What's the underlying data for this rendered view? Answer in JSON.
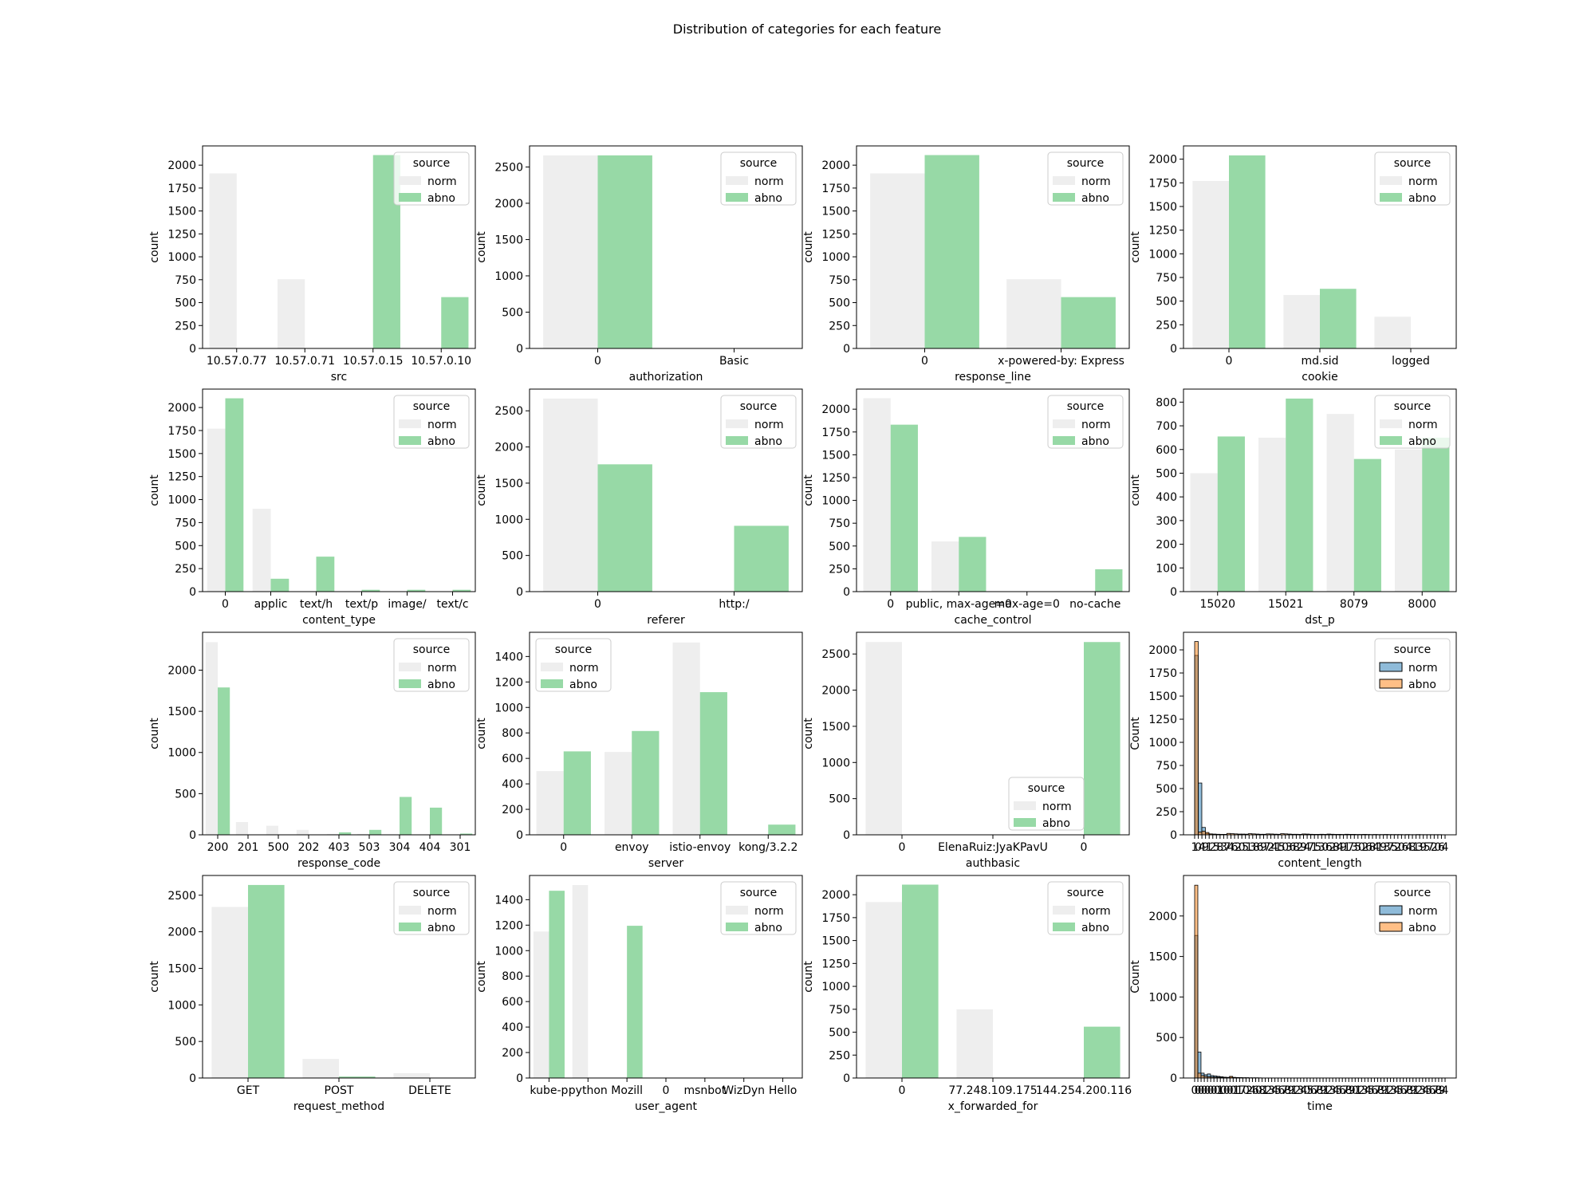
{
  "figure": {
    "title": "Distribution of categories for each feature",
    "legend_title": "source",
    "colors": {
      "norm_count": "#eeeeee",
      "abno_count": "#97d9a6",
      "norm_hist": "#1f77b4",
      "abno_hist": "#ff7f0e",
      "hist_edge": "#000000"
    }
  },
  "chart_data": [
    {
      "type": "bar",
      "xlabel": "src",
      "ylabel": "count",
      "categories": [
        "10.57.0.77",
        "10.57.0.71",
        "10.57.0.15",
        "10.57.0.10"
      ],
      "series": [
        {
          "name": "norm",
          "values": [
            1910,
            755,
            0,
            0
          ]
        },
        {
          "name": "abno",
          "values": [
            0,
            0,
            2110,
            560
          ]
        }
      ],
      "ylim": [
        0,
        2210
      ],
      "yticks": [
        0,
        250,
        500,
        750,
        1000,
        1250,
        1500,
        1750,
        2000
      ],
      "legend": "upper right"
    },
    {
      "type": "bar",
      "xlabel": "authorization",
      "ylabel": "count",
      "categories": [
        "0",
        "Basic"
      ],
      "series": [
        {
          "name": "norm",
          "values": [
            2660,
            0
          ]
        },
        {
          "name": "abno",
          "values": [
            2660,
            0
          ]
        }
      ],
      "ylim": [
        0,
        2790
      ],
      "yticks": [
        0,
        500,
        1000,
        1500,
        2000,
        2500
      ],
      "legend": "upper right"
    },
    {
      "type": "bar",
      "xlabel": "response_line",
      "ylabel": "count",
      "categories": [
        "0",
        "x-powered-by: Express"
      ],
      "series": [
        {
          "name": "norm",
          "values": [
            1910,
            755
          ]
        },
        {
          "name": "abno",
          "values": [
            2110,
            560
          ]
        }
      ],
      "ylim": [
        0,
        2210
      ],
      "yticks": [
        0,
        250,
        500,
        750,
        1000,
        1250,
        1500,
        1750,
        2000
      ],
      "legend": "upper right"
    },
    {
      "type": "bar",
      "xlabel": "cookie",
      "ylabel": "count",
      "categories": [
        "0",
        "md.sid",
        "logged"
      ],
      "series": [
        {
          "name": "norm",
          "values": [
            1770,
            565,
            335
          ]
        },
        {
          "name": "abno",
          "values": [
            2040,
            630,
            0
          ]
        }
      ],
      "ylim": [
        0,
        2140
      ],
      "yticks": [
        0,
        250,
        500,
        750,
        1000,
        1250,
        1500,
        1750,
        2000
      ],
      "legend": "upper right"
    },
    {
      "type": "bar",
      "xlabel": "content_type",
      "ylabel": "count",
      "categories": [
        "0",
        "applic",
        "text/h",
        "text/p",
        "image/",
        "text/c"
      ],
      "series": [
        {
          "name": "norm",
          "values": [
            1770,
            900,
            0,
            0,
            0,
            0
          ]
        },
        {
          "name": "abno",
          "values": [
            2100,
            140,
            380,
            20,
            20,
            20
          ]
        }
      ],
      "ylim": [
        0,
        2200
      ],
      "yticks": [
        0,
        250,
        500,
        750,
        1000,
        1250,
        1500,
        1750,
        2000
      ],
      "legend": "upper right"
    },
    {
      "type": "bar",
      "xlabel": "referer",
      "ylabel": "count",
      "categories": [
        "0",
        "http:/"
      ],
      "series": [
        {
          "name": "norm",
          "values": [
            2670,
            0
          ]
        },
        {
          "name": "abno",
          "values": [
            1760,
            910
          ]
        }
      ],
      "ylim": [
        0,
        2800
      ],
      "yticks": [
        0,
        500,
        1000,
        1500,
        2000,
        2500
      ],
      "legend": "upper right"
    },
    {
      "type": "bar",
      "xlabel": "cache_control",
      "ylabel": "count",
      "categories": [
        "0",
        "public, max-age=0",
        "max-age=0",
        "no-cache"
      ],
      "series": [
        {
          "name": "norm",
          "values": [
            2120,
            550,
            0,
            0
          ]
        },
        {
          "name": "abno",
          "values": [
            1830,
            600,
            0,
            245
          ]
        }
      ],
      "ylim": [
        0,
        2220
      ],
      "yticks": [
        0,
        250,
        500,
        750,
        1000,
        1250,
        1500,
        1750,
        2000
      ],
      "legend": "upper right"
    },
    {
      "type": "bar",
      "xlabel": "dst_p",
      "ylabel": "count",
      "categories": [
        "15020",
        "15021",
        "8079",
        "8000"
      ],
      "series": [
        {
          "name": "norm",
          "values": [
            500,
            650,
            750,
            600
          ]
        },
        {
          "name": "abno",
          "values": [
            655,
            815,
            560,
            650
          ]
        }
      ],
      "ylim": [
        0,
        855
      ],
      "yticks": [
        0,
        100,
        200,
        300,
        400,
        500,
        600,
        700,
        800
      ],
      "legend": "upper right"
    },
    {
      "type": "bar",
      "xlabel": "response_code",
      "ylabel": "count",
      "categories": [
        "200",
        "201",
        "500",
        "202",
        "403",
        "503",
        "304",
        "404",
        "301"
      ],
      "series": [
        {
          "name": "norm",
          "values": [
            2340,
            155,
            110,
            60,
            10,
            10,
            0,
            0,
            0
          ]
        },
        {
          "name": "abno",
          "values": [
            1790,
            0,
            0,
            0,
            30,
            60,
            460,
            330,
            15
          ]
        }
      ],
      "ylim": [
        0,
        2460
      ],
      "yticks": [
        0,
        500,
        1000,
        1500,
        2000
      ],
      "legend": "upper right"
    },
    {
      "type": "bar",
      "xlabel": "server",
      "ylabel": "count",
      "categories": [
        "0",
        "envoy",
        "istio-envoy",
        "kong/3.2.2"
      ],
      "series": [
        {
          "name": "norm",
          "values": [
            500,
            650,
            1510,
            0
          ]
        },
        {
          "name": "abno",
          "values": [
            655,
            815,
            1120,
            80
          ]
        }
      ],
      "ylim": [
        0,
        1590
      ],
      "yticks": [
        0,
        200,
        400,
        600,
        800,
        1000,
        1200,
        1400
      ],
      "legend": "upper left"
    },
    {
      "type": "bar",
      "xlabel": "authbasic",
      "ylabel": "count",
      "categories": [
        "0",
        "ElenaRuiz:JyaKPavU",
        "0"
      ],
      "series": [
        {
          "name": "norm",
          "values": [
            2665,
            0,
            0
          ]
        },
        {
          "name": "abno",
          "values": [
            0,
            0,
            2665
          ]
        }
      ],
      "ylim": [
        0,
        2800
      ],
      "yticks": [
        0,
        500,
        1000,
        1500,
        2000,
        2500
      ],
      "legend": "lower center"
    },
    {
      "type": "histogram",
      "xlabel": "content_length",
      "ylabel": "Count",
      "xtick_labels": [
        "1",
        "0",
        "4",
        "9",
        "1",
        "2",
        "5",
        "8",
        "3",
        "7",
        "4",
        "6",
        "2",
        "0",
        "5",
        "1",
        "3",
        "8",
        "6",
        "9",
        "7",
        "2",
        "4",
        "1",
        "5",
        "0",
        "3",
        "6",
        "8",
        "2",
        "9",
        "4",
        "7",
        "1",
        "5",
        "3",
        "0",
        "6",
        "2",
        "8",
        "4",
        "9",
        "1",
        "7",
        "3",
        "5",
        "0",
        "2",
        "6",
        "8",
        "4",
        "1",
        "9",
        "3",
        "7",
        "5",
        "2",
        "0",
        "6",
        "4",
        "8",
        "1",
        "3",
        "9",
        "5",
        "7",
        "2",
        "0",
        "6",
        "4"
      ],
      "series": [
        {
          "name": "norm",
          "values": [
            1940,
            560,
            80,
            15,
            5,
            3,
            2,
            2,
            1,
            1,
            0,
            0,
            0,
            0,
            0,
            0,
            0,
            0,
            0,
            0,
            0,
            0,
            0,
            0,
            0,
            0,
            0,
            0,
            0,
            0,
            0,
            0,
            0,
            0,
            0,
            0,
            0,
            0,
            0,
            0,
            0,
            0,
            0,
            0,
            0,
            0,
            0,
            0,
            0,
            0,
            0,
            0,
            0,
            0,
            0,
            0,
            0,
            0,
            0,
            0,
            0,
            0,
            0,
            0,
            0,
            0,
            0,
            0,
            0,
            0
          ]
        },
        {
          "name": "abno",
          "values": [
            2090,
            30,
            40,
            25,
            10,
            8,
            6,
            5,
            5,
            15,
            12,
            10,
            8,
            8,
            7,
            12,
            10,
            8,
            6,
            6,
            10,
            9,
            7,
            6,
            12,
            10,
            8,
            6,
            6,
            5,
            9,
            8,
            6,
            5,
            5,
            6,
            5,
            8,
            6,
            5,
            5,
            4,
            6,
            5,
            5,
            4,
            4,
            5,
            4,
            3,
            4,
            3,
            3,
            4,
            3,
            3,
            3,
            3,
            2,
            3,
            2,
            2,
            3,
            2,
            2,
            2,
            2,
            2,
            2,
            1
          ]
        }
      ],
      "ylim": [
        0,
        2190
      ],
      "yticks": [
        0,
        250,
        500,
        750,
        1000,
        1250,
        1500,
        1750,
        2000
      ],
      "legend": "upper right"
    },
    {
      "type": "bar",
      "xlabel": "request_method",
      "ylabel": "count",
      "categories": [
        "GET",
        "POST",
        "DELETE"
      ],
      "series": [
        {
          "name": "norm",
          "values": [
            2340,
            260,
            65
          ]
        },
        {
          "name": "abno",
          "values": [
            2640,
            20,
            0
          ]
        }
      ],
      "ylim": [
        0,
        2770
      ],
      "yticks": [
        0,
        500,
        1000,
        1500,
        2000,
        2500
      ],
      "legend": "upper right"
    },
    {
      "type": "bar",
      "xlabel": "user_agent",
      "ylabel": "count",
      "categories": [
        "kube-p",
        "python",
        "Mozill",
        "0",
        "msnbot",
        "WizDyn",
        "Hello"
      ],
      "series": [
        {
          "name": "norm",
          "values": [
            1150,
            1515,
            0,
            0,
            0,
            0,
            0
          ]
        },
        {
          "name": "abno",
          "values": [
            1470,
            0,
            1195,
            0,
            0,
            0,
            0
          ]
        }
      ],
      "ylim": [
        0,
        1590
      ],
      "yticks": [
        0,
        200,
        400,
        600,
        800,
        1000,
        1200,
        1400
      ],
      "legend": "upper right"
    },
    {
      "type": "bar",
      "xlabel": "x_forwarded_for",
      "ylabel": "count",
      "categories": [
        "0",
        "77.248.109.175",
        "144.254.200.116"
      ],
      "series": [
        {
          "name": "norm",
          "values": [
            1920,
            750,
            0
          ]
        },
        {
          "name": "abno",
          "values": [
            2110,
            0,
            560
          ]
        }
      ],
      "ylim": [
        0,
        2210
      ],
      "yticks": [
        0,
        250,
        500,
        750,
        1000,
        1250,
        1500,
        1750,
        2000
      ],
      "legend": "upper right"
    },
    {
      "type": "histogram",
      "xlabel": "time",
      "ylabel": "Count",
      "xtick_labels": [
        "0",
        "0",
        "0",
        "0",
        "0",
        "0",
        "0",
        "0",
        "1",
        "0",
        "0",
        "0",
        "0",
        "1",
        "1",
        "7",
        "0",
        "2",
        "4",
        "6",
        "0",
        "8",
        "1",
        "2",
        "3",
        "4",
        "5",
        "6",
        "7",
        "8",
        "9",
        "1",
        "2",
        "3",
        "4",
        "0",
        "5",
        "6",
        "7",
        "8",
        "9",
        "1",
        "2",
        "3",
        "4",
        "5",
        "6",
        "7",
        "8",
        "9",
        "0",
        "1",
        "2",
        "3",
        "4",
        "5",
        "6",
        "7",
        "8",
        "9",
        "1",
        "2",
        "3",
        "4",
        "5",
        "6",
        "7",
        "8",
        "9",
        "1",
        "2",
        "3",
        "4",
        "5",
        "6",
        "7",
        "8",
        "9",
        "4"
      ],
      "series": [
        {
          "name": "norm",
          "values": [
            1760,
            320,
            60,
            40,
            50,
            30,
            25,
            20,
            15,
            10,
            8,
            10,
            6,
            5,
            4,
            3,
            3,
            2,
            2,
            2,
            1,
            1,
            1,
            1,
            1,
            0,
            0,
            0,
            0,
            0,
            0,
            0,
            0,
            0,
            0,
            0,
            0,
            0,
            0,
            0,
            0,
            0,
            0,
            0,
            0,
            0,
            0,
            0,
            0,
            0,
            0,
            0,
            0,
            0,
            0,
            0,
            0,
            0,
            0,
            0,
            0,
            0,
            0,
            0,
            0,
            0,
            0,
            0,
            0,
            0,
            0,
            0,
            0,
            0,
            0,
            0,
            0,
            0,
            0
          ]
        },
        {
          "name": "abno",
          "values": [
            2380,
            60,
            30,
            20,
            15,
            12,
            10,
            10,
            8,
            6,
            5,
            20,
            8,
            5,
            4,
            3,
            3,
            2,
            2,
            2,
            2,
            1,
            1,
            1,
            1,
            1,
            0,
            0,
            0,
            0,
            0,
            0,
            0,
            0,
            0,
            0,
            0,
            0,
            0,
            0,
            0,
            0,
            0,
            0,
            0,
            0,
            0,
            0,
            0,
            0,
            0,
            0,
            0,
            0,
            0,
            0,
            0,
            0,
            0,
            0,
            0,
            0,
            0,
            0,
            0,
            0,
            0,
            0,
            0,
            0,
            0,
            0,
            0,
            0,
            0,
            0,
            0,
            0,
            0
          ]
        }
      ],
      "ylim": [
        0,
        2500
      ],
      "yticks": [
        0,
        500,
        1000,
        1500,
        2000
      ],
      "legend": "upper right"
    }
  ]
}
